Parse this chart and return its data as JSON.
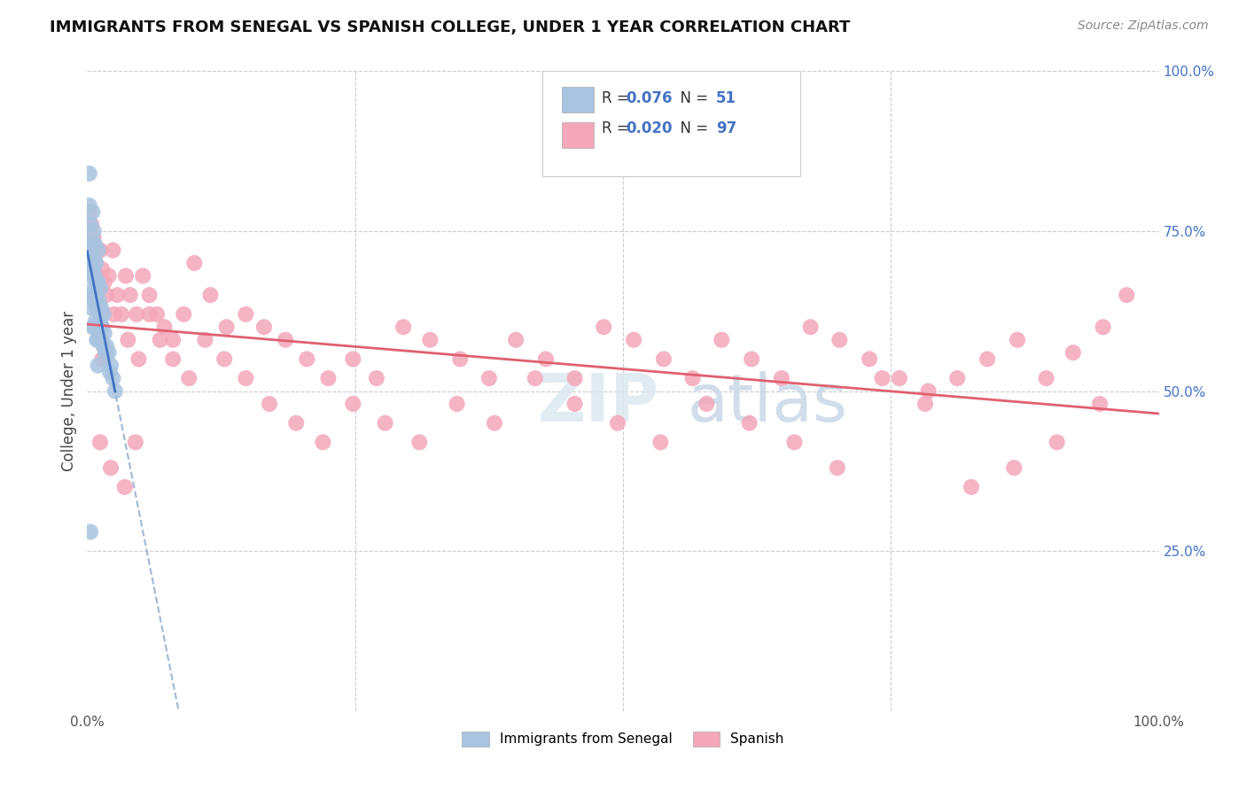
{
  "title": "IMMIGRANTS FROM SENEGAL VS SPANISH COLLEGE, UNDER 1 YEAR CORRELATION CHART",
  "source_text": "Source: ZipAtlas.com",
  "ylabel": "College, Under 1 year",
  "legend_label1": "Immigrants from Senegal",
  "legend_label2": "Spanish",
  "color_blue": "#a8c4e0",
  "color_pink": "#f4a7b9",
  "color_blue_line": "#4472c4",
  "color_pink_line": "#e06070",
  "color_dashed_line": "#a0b8d8",
  "background_color": "#ffffff",
  "grid_color": "#cccccc",
  "blue_r": 0.076,
  "blue_n": 51,
  "pink_r": 0.02,
  "pink_n": 97,
  "blue_scatter_x": [
    0.002,
    0.002,
    0.002,
    0.003,
    0.003,
    0.003,
    0.003,
    0.004,
    0.004,
    0.004,
    0.005,
    0.005,
    0.005,
    0.005,
    0.005,
    0.006,
    0.006,
    0.006,
    0.007,
    0.007,
    0.007,
    0.007,
    0.008,
    0.008,
    0.008,
    0.009,
    0.009,
    0.009,
    0.01,
    0.01,
    0.01,
    0.01,
    0.01,
    0.011,
    0.011,
    0.012,
    0.012,
    0.013,
    0.013,
    0.014,
    0.015,
    0.015,
    0.016,
    0.017,
    0.018,
    0.02,
    0.021,
    0.022,
    0.024,
    0.026,
    0.003
  ],
  "blue_scatter_y": [
    0.84,
    0.79,
    0.73,
    0.76,
    0.72,
    0.7,
    0.65,
    0.71,
    0.68,
    0.63,
    0.78,
    0.73,
    0.69,
    0.65,
    0.6,
    0.75,
    0.7,
    0.66,
    0.73,
    0.68,
    0.64,
    0.6,
    0.7,
    0.65,
    0.61,
    0.67,
    0.63,
    0.58,
    0.72,
    0.67,
    0.63,
    0.58,
    0.54,
    0.64,
    0.59,
    0.66,
    0.61,
    0.63,
    0.58,
    0.6,
    0.62,
    0.57,
    0.59,
    0.56,
    0.57,
    0.56,
    0.53,
    0.54,
    0.52,
    0.5,
    0.28
  ],
  "pink_scatter_x": [
    0.002,
    0.004,
    0.006,
    0.007,
    0.008,
    0.009,
    0.01,
    0.012,
    0.014,
    0.016,
    0.018,
    0.02,
    0.024,
    0.028,
    0.032,
    0.036,
    0.04,
    0.046,
    0.052,
    0.058,
    0.065,
    0.072,
    0.08,
    0.09,
    0.1,
    0.115,
    0.13,
    0.148,
    0.165,
    0.185,
    0.205,
    0.225,
    0.248,
    0.27,
    0.295,
    0.32,
    0.348,
    0.375,
    0.4,
    0.428,
    0.455,
    0.482,
    0.51,
    0.538,
    0.565,
    0.592,
    0.62,
    0.648,
    0.675,
    0.702,
    0.73,
    0.758,
    0.785,
    0.812,
    0.84,
    0.868,
    0.895,
    0.92,
    0.948,
    0.97,
    0.014,
    0.025,
    0.038,
    0.048,
    0.058,
    0.068,
    0.08,
    0.095,
    0.11,
    0.128,
    0.148,
    0.17,
    0.195,
    0.22,
    0.248,
    0.278,
    0.31,
    0.345,
    0.38,
    0.418,
    0.455,
    0.495,
    0.535,
    0.578,
    0.618,
    0.66,
    0.7,
    0.742,
    0.782,
    0.825,
    0.865,
    0.905,
    0.945,
    0.012,
    0.022,
    0.035,
    0.045
  ],
  "pink_scatter_y": [
    0.78,
    0.76,
    0.74,
    0.72,
    0.7,
    0.68,
    0.66,
    0.72,
    0.69,
    0.67,
    0.65,
    0.68,
    0.72,
    0.65,
    0.62,
    0.68,
    0.65,
    0.62,
    0.68,
    0.65,
    0.62,
    0.6,
    0.58,
    0.62,
    0.7,
    0.65,
    0.6,
    0.62,
    0.6,
    0.58,
    0.55,
    0.52,
    0.55,
    0.52,
    0.6,
    0.58,
    0.55,
    0.52,
    0.58,
    0.55,
    0.52,
    0.6,
    0.58,
    0.55,
    0.52,
    0.58,
    0.55,
    0.52,
    0.6,
    0.58,
    0.55,
    0.52,
    0.5,
    0.52,
    0.55,
    0.58,
    0.52,
    0.56,
    0.6,
    0.65,
    0.55,
    0.62,
    0.58,
    0.55,
    0.62,
    0.58,
    0.55,
    0.52,
    0.58,
    0.55,
    0.52,
    0.48,
    0.45,
    0.42,
    0.48,
    0.45,
    0.42,
    0.48,
    0.45,
    0.52,
    0.48,
    0.45,
    0.42,
    0.48,
    0.45,
    0.42,
    0.38,
    0.52,
    0.48,
    0.35,
    0.38,
    0.42,
    0.48,
    0.42,
    0.38,
    0.35,
    0.42
  ],
  "xlim": [
    0.0,
    1.0
  ],
  "ylim": [
    0.0,
    1.0
  ],
  "figsize": [
    14.06,
    8.92
  ],
  "dpi": 100
}
